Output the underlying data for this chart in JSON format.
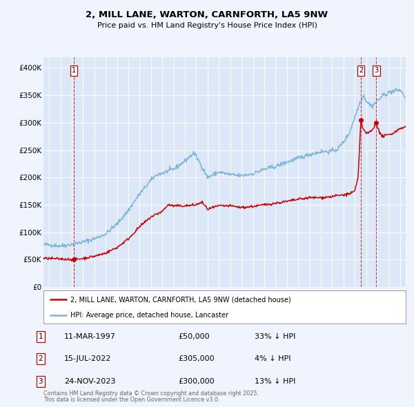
{
  "title": "2, MILL LANE, WARTON, CARNFORTH, LA5 9NW",
  "subtitle": "Price paid vs. HM Land Registry's House Price Index (HPI)",
  "background_color": "#f0f4ff",
  "plot_bg_color": "#dce8f8",
  "grid_color": "#ffffff",
  "legend_entries": [
    "2, MILL LANE, WARTON, CARNFORTH, LA5 9NW (detached house)",
    "HPI: Average price, detached house, Lancaster"
  ],
  "transactions": [
    {
      "label": "1",
      "date": "11-MAR-1997",
      "price": "£50,000",
      "pct": "33%",
      "dir": "↓",
      "x_year": 1997.19,
      "y_val": 50000
    },
    {
      "label": "2",
      "date": "15-JUL-2022",
      "price": "£305,000",
      "pct": "4%",
      "dir": "↓",
      "x_year": 2022.54,
      "y_val": 305000
    },
    {
      "label": "3",
      "date": "24-NOV-2023",
      "price": "£300,000",
      "pct": "13%",
      "dir": "↓",
      "x_year": 2023.9,
      "y_val": 300000
    }
  ],
  "footnote1": "Contains HM Land Registry data © Crown copyright and database right 2025.",
  "footnote2": "This data is licensed under the Open Government Licence v3.0.",
  "hpi_color": "#7ab4d8",
  "price_color": "#cc0000",
  "dashed_color": "#cc0000",
  "ylim": [
    0,
    420000
  ],
  "xlim": [
    1994.5,
    2026.5
  ],
  "hpi_anchors": [
    [
      1994.5,
      77000
    ],
    [
      1995.0,
      77000
    ],
    [
      1996.0,
      75000
    ],
    [
      1997.0,
      78000
    ],
    [
      1998.0,
      82000
    ],
    [
      1999.0,
      88000
    ],
    [
      2000.0,
      97000
    ],
    [
      2001.0,
      115000
    ],
    [
      2002.0,
      140000
    ],
    [
      2003.0,
      170000
    ],
    [
      2004.0,
      195000
    ],
    [
      2004.5,
      205000
    ],
    [
      2005.0,
      208000
    ],
    [
      2006.0,
      215000
    ],
    [
      2007.0,
      230000
    ],
    [
      2007.8,
      245000
    ],
    [
      2008.5,
      220000
    ],
    [
      2009.0,
      200000
    ],
    [
      2009.5,
      205000
    ],
    [
      2010.0,
      210000
    ],
    [
      2011.0,
      205000
    ],
    [
      2012.0,
      203000
    ],
    [
      2013.0,
      207000
    ],
    [
      2014.0,
      215000
    ],
    [
      2015.0,
      220000
    ],
    [
      2016.0,
      228000
    ],
    [
      2017.0,
      235000
    ],
    [
      2018.0,
      242000
    ],
    [
      2019.0,
      247000
    ],
    [
      2020.0,
      248000
    ],
    [
      2020.5,
      252000
    ],
    [
      2021.0,
      265000
    ],
    [
      2021.5,
      280000
    ],
    [
      2022.0,
      310000
    ],
    [
      2022.5,
      340000
    ],
    [
      2022.8,
      350000
    ],
    [
      2023.0,
      340000
    ],
    [
      2023.5,
      330000
    ],
    [
      2024.0,
      340000
    ],
    [
      2024.5,
      350000
    ],
    [
      2025.0,
      355000
    ],
    [
      2025.5,
      358000
    ],
    [
      2026.0,
      360000
    ],
    [
      2026.5,
      345000
    ]
  ],
  "price_anchors": [
    [
      1994.5,
      52000
    ],
    [
      1995.0,
      52000
    ],
    [
      1996.0,
      51000
    ],
    [
      1997.0,
      50500
    ],
    [
      1997.19,
      50000
    ],
    [
      1998.0,
      52000
    ],
    [
      1999.0,
      56000
    ],
    [
      2000.0,
      62000
    ],
    [
      2001.0,
      72000
    ],
    [
      2002.0,
      88000
    ],
    [
      2003.0,
      110000
    ],
    [
      2004.0,
      128000
    ],
    [
      2005.0,
      138000
    ],
    [
      2005.5,
      150000
    ],
    [
      2006.0,
      148000
    ],
    [
      2007.0,
      148000
    ],
    [
      2008.0,
      150000
    ],
    [
      2008.5,
      155000
    ],
    [
      2009.0,
      142000
    ],
    [
      2010.0,
      148000
    ],
    [
      2011.0,
      148000
    ],
    [
      2012.0,
      145000
    ],
    [
      2013.0,
      147000
    ],
    [
      2014.0,
      150000
    ],
    [
      2015.0,
      153000
    ],
    [
      2016.0,
      156000
    ],
    [
      2017.0,
      160000
    ],
    [
      2018.0,
      163000
    ],
    [
      2019.0,
      163000
    ],
    [
      2020.0,
      165000
    ],
    [
      2020.5,
      167000
    ],
    [
      2021.0,
      168000
    ],
    [
      2021.5,
      170000
    ],
    [
      2022.0,
      175000
    ],
    [
      2022.3,
      200000
    ],
    [
      2022.54,
      305000
    ],
    [
      2022.7,
      290000
    ],
    [
      2023.0,
      280000
    ],
    [
      2023.5,
      285000
    ],
    [
      2023.9,
      300000
    ],
    [
      2024.2,
      280000
    ],
    [
      2024.5,
      275000
    ],
    [
      2025.0,
      278000
    ],
    [
      2025.5,
      282000
    ],
    [
      2026.0,
      290000
    ],
    [
      2026.5,
      292000
    ]
  ]
}
